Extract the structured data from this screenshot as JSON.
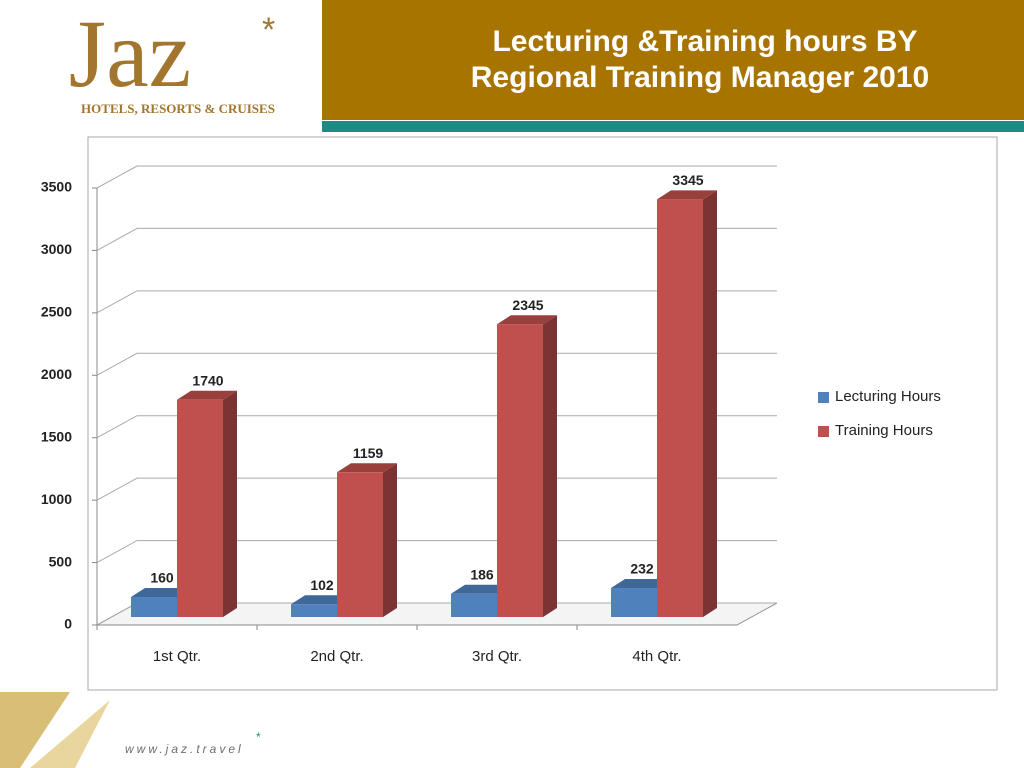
{
  "logo": {
    "name": "Jaz",
    "tagline": "HOTELS, RESORTS & CRUISES"
  },
  "footer": {
    "url": "www.jaz.travel"
  },
  "chart_data": {
    "type": "bar",
    "title": "Lecturing &Training hours BY Regional Training Manager 2010",
    "categories": [
      "1st Qtr.",
      "2nd Qtr.",
      "3rd Qtr.",
      "4th Qtr."
    ],
    "series": [
      {
        "name": "Lecturing Hours",
        "color": "#4f81bd",
        "values": [
          160,
          102,
          186,
          232
        ]
      },
      {
        "name": "Training Hours",
        "color": "#c0504d",
        "values": [
          1740,
          1159,
          2345,
          3345
        ]
      }
    ],
    "ylim": [
      0,
      3500
    ],
    "yticks": [
      0,
      500,
      1000,
      1500,
      2000,
      2500,
      3000,
      3500
    ],
    "grid": true,
    "legend": "right"
  }
}
